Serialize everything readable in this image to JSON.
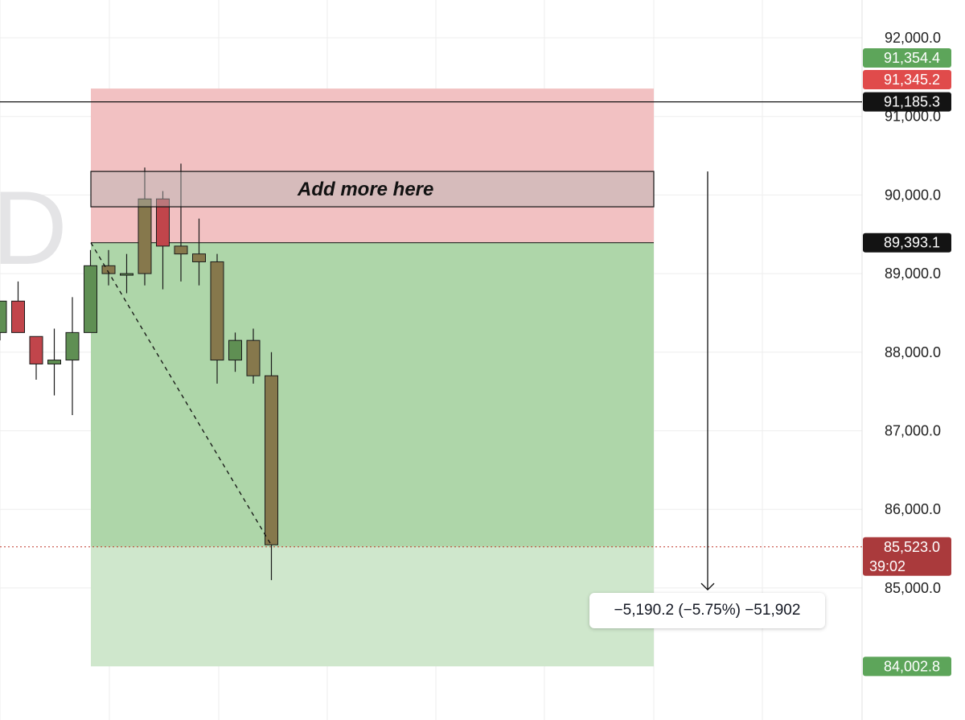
{
  "watermark": {
    "glyph": "D"
  },
  "chart_data": {
    "type": "candlestick",
    "ylim": [
      83100,
      92500
    ],
    "y_ticks": [
      "92,000.0",
      "91,000.0",
      "90,000.0",
      "89,000.0",
      "88,000.0",
      "87,000.0",
      "86,000.0",
      "85,000.0"
    ],
    "y_tick_values": [
      92000,
      91000,
      90000,
      89000,
      88000,
      87000,
      86000,
      85000
    ],
    "grid": true,
    "candles": [
      {
        "open": 88250,
        "high": 88650,
        "low": 88150,
        "close": 88650
      },
      {
        "open": 88650,
        "high": 88900,
        "low": 88250,
        "close": 88250
      },
      {
        "open": 88200,
        "high": 88200,
        "low": 87650,
        "close": 87850
      },
      {
        "open": 87850,
        "high": 88300,
        "low": 87450,
        "close": 87900
      },
      {
        "open": 87900,
        "high": 88700,
        "low": 87200,
        "close": 88250
      },
      {
        "open": 88250,
        "high": 89300,
        "low": 88250,
        "close": 89100
      },
      {
        "open": 89100,
        "high": 89300,
        "low": 88850,
        "close": 89000
      },
      {
        "open": 88980,
        "high": 89250,
        "low": 88750,
        "close": 89000
      },
      {
        "open": 89000,
        "high": 90350,
        "low": 88850,
        "close": 89950
      },
      {
        "open": 89950,
        "high": 90050,
        "low": 88800,
        "close": 89350
      },
      {
        "open": 89350,
        "high": 90400,
        "low": 88900,
        "close": 89250
      },
      {
        "open": 89250,
        "high": 89700,
        "low": 88850,
        "close": 89150
      },
      {
        "open": 89150,
        "high": 89250,
        "low": 87600,
        "close": 87900
      },
      {
        "open": 87900,
        "high": 88250,
        "low": 87750,
        "close": 88150
      },
      {
        "open": 88150,
        "high": 88300,
        "low": 87600,
        "close": 87700
      },
      {
        "open": 87700,
        "high": 88000,
        "low": 85100,
        "close": 85550
      }
    ],
    "horizontal_line": 91185.3,
    "current_price_line": 85523.0,
    "position": {
      "stop": 91354.4,
      "entry": 89393.1,
      "target": 84002.8
    },
    "add_zone": {
      "top": 90300,
      "bottom": 89850,
      "label": "Add more here"
    },
    "measure_arrow": {
      "from": 90300,
      "to": 85100
    },
    "price_tags": [
      {
        "value": 91354.4,
        "text": "91,354.4",
        "color": "#5da55a"
      },
      {
        "value": 91345.2,
        "text": "91,345.2",
        "color": "#e04b4b"
      },
      {
        "value": 91185.3,
        "text": "91,185.3",
        "color": "#131313"
      },
      {
        "value": 89393.1,
        "text": "89,393.1",
        "color": "#131313"
      },
      {
        "value": 85523.0,
        "text": "85,523.0",
        "subtext": "39:02",
        "color": "#aa3a3c"
      },
      {
        "value": 84002.8,
        "text": "84,002.8",
        "color": "#5da55a"
      }
    ],
    "colors": {
      "up_candle": "#5f8f53",
      "down_candle": "#c1454b",
      "in_zone_candle": "#86784c",
      "stop_zone": "#f2c1c2",
      "profit_zone": "#aed6a9",
      "profit_zone_light": "#cfe7cc"
    }
  },
  "measurement": {
    "label": "−5,190.2 (−5.75%) −51,902"
  }
}
